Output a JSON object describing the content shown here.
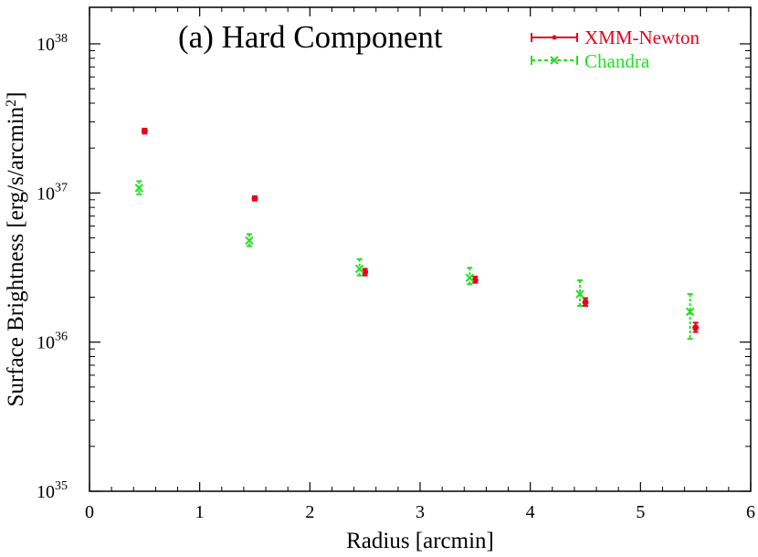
{
  "chart_data": {
    "type": "scatter",
    "title": "(a) Hard Component",
    "xlabel": "Radius [arcmin]",
    "ylabel_base": "Surface Brightness [erg/s/arcmin",
    "ylabel_sup": "2",
    "ylabel_close": "]",
    "xlim": [
      0,
      6
    ],
    "ylim": [
      1e+35,
      2e+38
    ],
    "y_scale": "log",
    "legend_position": "top-right",
    "x_ticks": [
      {
        "value": 0,
        "label": "0"
      },
      {
        "value": 1,
        "label": "1"
      },
      {
        "value": 2,
        "label": "2"
      },
      {
        "value": 3,
        "label": "3"
      },
      {
        "value": 4,
        "label": "4"
      },
      {
        "value": 5,
        "label": "5"
      },
      {
        "value": 6,
        "label": "6"
      }
    ],
    "y_ticks": [
      {
        "value": 1e+35,
        "base": "10",
        "exp": "35"
      },
      {
        "value": 1e+36,
        "base": "10",
        "exp": "36"
      },
      {
        "value": 1e+37,
        "base": "10",
        "exp": "37"
      },
      {
        "value": 1e+38,
        "base": "10",
        "exp": "38"
      }
    ],
    "series": [
      {
        "name": "XMM-Newton",
        "color": "#e8001c",
        "marker": "dot",
        "points": [
          {
            "x": 0.5,
            "y": 2.6e+37,
            "ylo": 2.5e+37,
            "yhi": 2.7e+37
          },
          {
            "x": 1.5,
            "y": 9.2e+36,
            "ylo": 8.9e+36,
            "yhi": 9.5e+36
          },
          {
            "x": 2.5,
            "y": 2.95e+36,
            "ylo": 2.8e+36,
            "yhi": 3.1e+36
          },
          {
            "x": 3.5,
            "y": 2.6e+36,
            "ylo": 2.5e+36,
            "yhi": 2.75e+36
          },
          {
            "x": 4.5,
            "y": 1.85e+36,
            "ylo": 1.75e+36,
            "yhi": 1.97e+36
          },
          {
            "x": 5.5,
            "y": 1.25e+36,
            "ylo": 1.17e+36,
            "yhi": 1.35e+36
          }
        ]
      },
      {
        "name": "Chandra",
        "color": "#22e022",
        "marker": "x",
        "points": [
          {
            "x": 0.45,
            "y": 1.08e+37,
            "ylo": 9.8e+36,
            "yhi": 1.2e+37
          },
          {
            "x": 1.45,
            "y": 4.8e+36,
            "ylo": 4.4e+36,
            "yhi": 5.3e+36
          },
          {
            "x": 2.45,
            "y": 3.1e+36,
            "ylo": 2.8e+36,
            "yhi": 3.6e+36
          },
          {
            "x": 3.45,
            "y": 2.7e+36,
            "ylo": 2.45e+36,
            "yhi": 3.15e+36
          },
          {
            "x": 4.45,
            "y": 2.1e+36,
            "ylo": 1.75e+36,
            "yhi": 2.6e+36
          },
          {
            "x": 5.45,
            "y": 1.6e+36,
            "ylo": 1.05e+36,
            "yhi": 2.1e+36
          }
        ]
      }
    ]
  }
}
